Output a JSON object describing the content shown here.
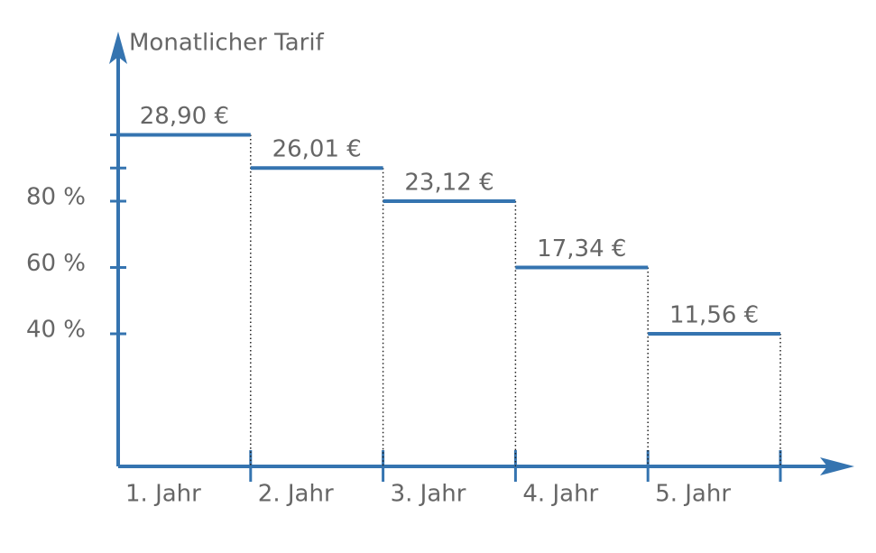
{
  "chart_data": {
    "type": "step",
    "title": "Monatlicher Tarif",
    "categories": [
      "1. Jahr",
      "2. Jahr",
      "3. Jahr",
      "4. Jahr",
      "5. Jahr"
    ],
    "values": [
      28.9,
      26.01,
      23.12,
      17.34,
      11.56
    ],
    "value_labels": [
      "28,90 €",
      "26,01 €",
      "23,12 €",
      "17,34 €",
      "11,56 €"
    ],
    "color": "#3574b0",
    "ylim": [
      0,
      37.9
    ],
    "yticks": [
      {
        "value": 11.56,
        "label": "40 %"
      },
      {
        "value": 17.34,
        "label": "60 %"
      },
      {
        "value": 23.12,
        "label": "80 %"
      },
      {
        "value": 26.01,
        "label": null
      },
      {
        "value": 28.9,
        "label": null
      }
    ]
  }
}
